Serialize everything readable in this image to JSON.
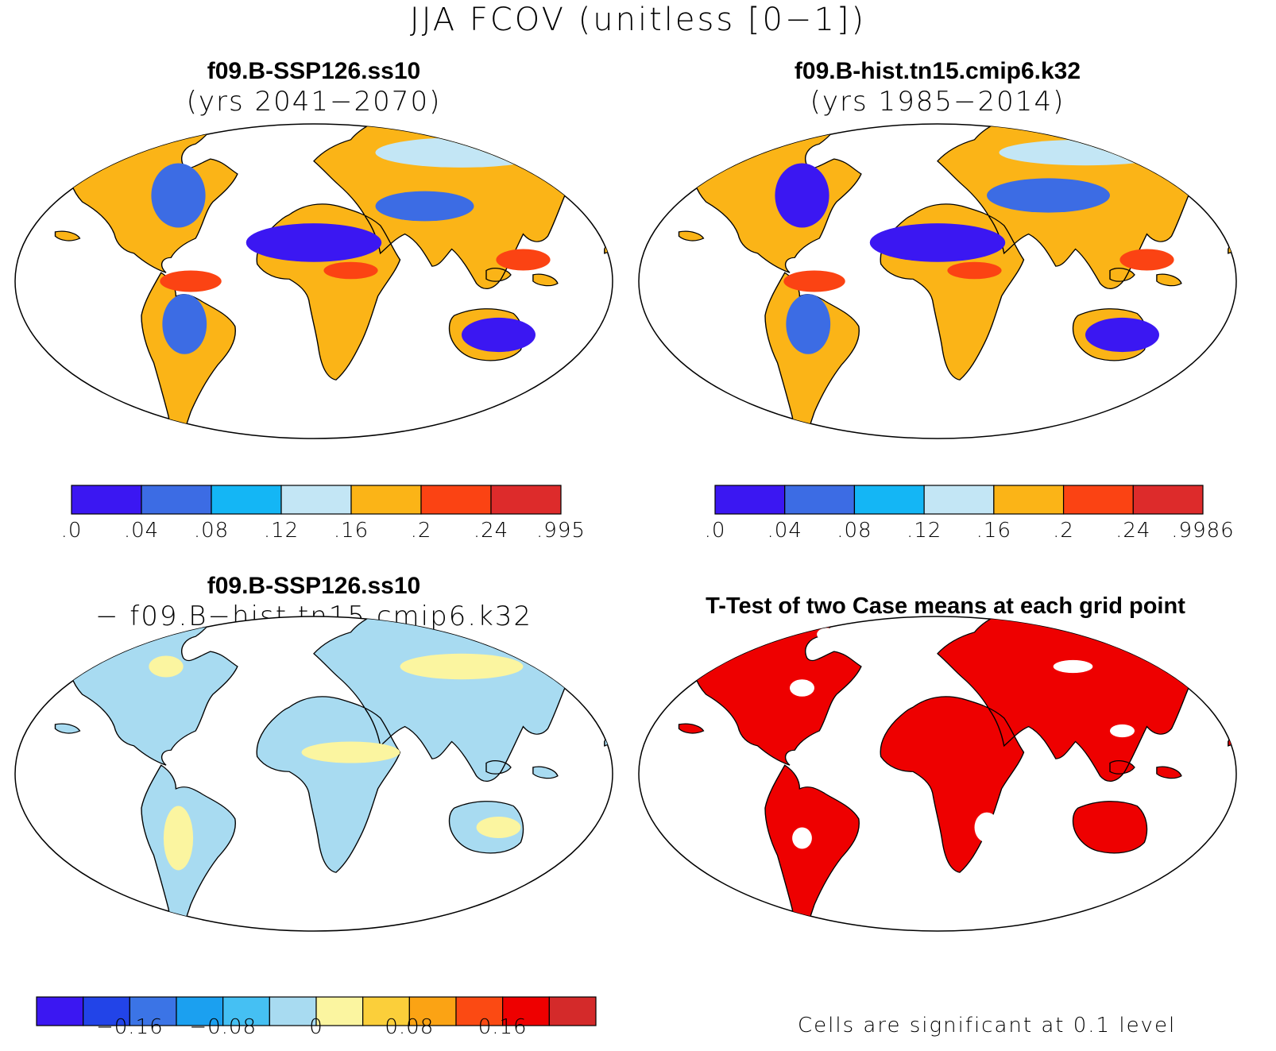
{
  "figure_title": "JJA FCOV (unitless [0−1])",
  "panels": [
    {
      "title": "f09.B-SSP126.ss10",
      "subtitle": "(yrs 2041−2070)"
    },
    {
      "title": "f09.B-hist.tn15.cmip6.k32",
      "subtitle": "(yrs 1985−2014)"
    },
    {
      "title": "f09.B-SSP126.ss10",
      "subtitle": "− f09.B−hist.tn15.cmip6.k32"
    },
    {
      "title": "T-Test of two Case means at each grid point",
      "subtitle": ""
    }
  ],
  "colorbars": {
    "case1": {
      "colors": [
        "#3b17f2",
        "#3c6ce4",
        "#14b6f5",
        "#c3e6f5",
        "#fbb417",
        "#fb4313",
        "#dd2b2b"
      ],
      "labels": [
        ".0",
        ".04",
        ".08",
        ".12",
        ".16",
        ".2",
        ".24",
        ".995"
      ]
    },
    "case2": {
      "colors": [
        "#3b17f2",
        "#3c6ce4",
        "#14b6f5",
        "#c3e6f5",
        "#fbb417",
        "#fb4313",
        "#dd2b2b"
      ],
      "labels": [
        ".0",
        ".04",
        ".08",
        ".12",
        ".16",
        ".2",
        ".24",
        ".9986"
      ]
    },
    "diff": {
      "colors": [
        "#3b17f2",
        "#2244e8",
        "#3b74e6",
        "#1ba0f0",
        "#45c0f3",
        "#a8dbf1",
        "#fbf5a0",
        "#fbcf3a",
        "#fba314",
        "#fb4a13",
        "#ee0000",
        "#d42a2a"
      ],
      "labels": [
        "−0.16",
        "−0.08",
        "0",
        "0.08",
        "0.16"
      ]
    }
  },
  "significance_note": "Cells are significant at 0.1 level",
  "map_colors": {
    "land_case": "#fbb417",
    "land_diff": "#a8dbf1",
    "significant": "#ee0000"
  }
}
